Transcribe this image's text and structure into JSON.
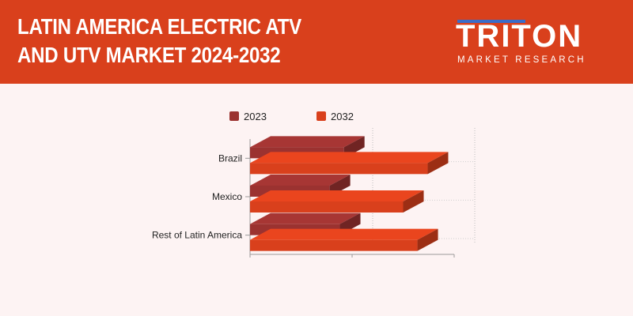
{
  "header": {
    "title": "LATIN AMERICA ELECTRIC ATV AND UTV MARKET 2024-2032",
    "logo_word": "TRITON",
    "logo_sub": "MARKET RESEARCH"
  },
  "colors": {
    "header_bg": "#d9401c",
    "background": "#fdf3f3",
    "series_2023": "#9b3230",
    "series_2032": "#d9401c"
  },
  "chart_data": {
    "type": "bar",
    "orientation": "horizontal",
    "style": "3d",
    "categories": [
      "Brazil",
      "Mexico",
      "Rest of Latin America"
    ],
    "series": [
      {
        "name": "2023",
        "values": [
          0.46,
          0.39,
          0.44
        ],
        "color": "#9b3230"
      },
      {
        "name": "2032",
        "values": [
          0.87,
          0.75,
          0.82
        ],
        "color": "#d9401c"
      }
    ],
    "xlim": [
      0,
      1
    ],
    "legend": "top",
    "grid": true
  }
}
